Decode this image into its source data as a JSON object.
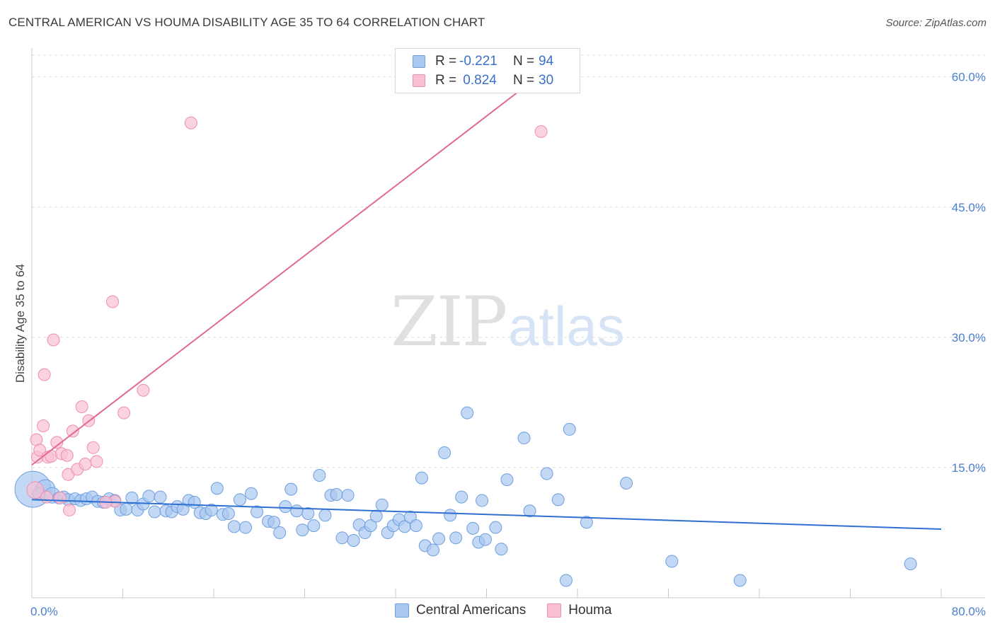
{
  "header": {
    "title": "CENTRAL AMERICAN VS HOUMA DISABILITY AGE 35 TO 64 CORRELATION CHART",
    "source": "Source: ZipAtlas.com"
  },
  "watermark": {
    "zip": "ZIP",
    "atlas": "atlas"
  },
  "legend": {
    "rows": [
      {
        "r_label": "R =",
        "r_value": "-0.221",
        "n_label": "N =",
        "n_value": "94",
        "color": "#a9c8f0",
        "border": "#6f9fe0"
      },
      {
        "r_label": "R =",
        "r_value": " 0.824",
        "n_label": "N =",
        "n_value": "30",
        "color": "#f9c0d3",
        "border": "#ee8fb0"
      }
    ]
  },
  "bottom_legend": [
    {
      "label": "Central Americans",
      "color": "#a9c8f0",
      "border": "#6f9fe0"
    },
    {
      "label": "Houma",
      "color": "#f9c0d3",
      "border": "#ee8fb0"
    }
  ],
  "chart_data": {
    "type": "scatter",
    "title": "CENTRAL AMERICAN VS HOUMA DISABILITY AGE 35 TO 64 CORRELATION CHART",
    "xlabel": "",
    "ylabel": "Disability Age 35 to 64",
    "xlim": [
      0,
      80
    ],
    "ylim": [
      0,
      62.5
    ],
    "x_tick_labels": [
      "0.0%",
      "80.0%"
    ],
    "y_ticks": [
      15,
      30,
      45,
      60
    ],
    "y_tick_labels": [
      "15.0%",
      "30.0%",
      "45.0%",
      "60.0%"
    ],
    "grid": true,
    "legend_position": "top-center",
    "series": [
      {
        "name": "Central Americans",
        "color": "#6f9fe0",
        "fill": "#a9c8f0",
        "trend": {
          "x": [
            0,
            80
          ],
          "y": [
            11.3,
            7.9
          ],
          "color": "#2f6fd0"
        },
        "points": [
          [
            0.1,
            12.5,
            3
          ],
          [
            1.2,
            12.5,
            1.6
          ],
          [
            0.6,
            12.0,
            1
          ],
          [
            1.8,
            11.8,
            1.3
          ],
          [
            2.4,
            11.5,
            1
          ],
          [
            2.8,
            11.6,
            1
          ],
          [
            3.2,
            11.3,
            1
          ],
          [
            3.8,
            11.4,
            1
          ],
          [
            4.3,
            11.2,
            1
          ],
          [
            4.8,
            11.4,
            1
          ],
          [
            5.3,
            11.6,
            1
          ],
          [
            5.8,
            11.1,
            1
          ],
          [
            6.3,
            11.0,
            1
          ],
          [
            6.8,
            11.4,
            1
          ],
          [
            7.3,
            11.2,
            1
          ],
          [
            7.8,
            10.1,
            1
          ],
          [
            8.3,
            10.2,
            1
          ],
          [
            8.8,
            11.5,
            1
          ],
          [
            9.3,
            10.1,
            1
          ],
          [
            9.8,
            10.8,
            1
          ],
          [
            10.3,
            11.7,
            1
          ],
          [
            10.8,
            9.9,
            1
          ],
          [
            11.3,
            11.6,
            1
          ],
          [
            11.8,
            10.0,
            1
          ],
          [
            12.3,
            9.9,
            1
          ],
          [
            12.8,
            10.5,
            1
          ],
          [
            13.3,
            10.2,
            1
          ],
          [
            13.8,
            11.2,
            1
          ],
          [
            14.3,
            11.0,
            1
          ],
          [
            14.8,
            9.8,
            1
          ],
          [
            15.3,
            9.7,
            1
          ],
          [
            15.8,
            10.1,
            1
          ],
          [
            16.3,
            12.6,
            1
          ],
          [
            16.8,
            9.6,
            1
          ],
          [
            17.3,
            9.7,
            1
          ],
          [
            17.8,
            8.2,
            1
          ],
          [
            18.3,
            11.3,
            1
          ],
          [
            18.8,
            8.1,
            1
          ],
          [
            19.3,
            12.0,
            1
          ],
          [
            19.8,
            9.9,
            1
          ],
          [
            20.8,
            8.8,
            1
          ],
          [
            21.3,
            8.7,
            1
          ],
          [
            21.8,
            7.5,
            1
          ],
          [
            22.3,
            10.5,
            1
          ],
          [
            22.8,
            12.5,
            1
          ],
          [
            23.3,
            10.0,
            1
          ],
          [
            23.8,
            7.8,
            1
          ],
          [
            24.3,
            9.7,
            1
          ],
          [
            24.8,
            8.3,
            1
          ],
          [
            25.3,
            14.1,
            1
          ],
          [
            25.8,
            9.5,
            1
          ],
          [
            26.3,
            11.8,
            1
          ],
          [
            26.8,
            11.9,
            1
          ],
          [
            27.3,
            6.9,
            1
          ],
          [
            27.8,
            11.8,
            1
          ],
          [
            28.3,
            6.6,
            1
          ],
          [
            28.8,
            8.4,
            1
          ],
          [
            29.3,
            7.5,
            1
          ],
          [
            29.8,
            8.3,
            1
          ],
          [
            30.3,
            9.4,
            1
          ],
          [
            30.8,
            10.7,
            1
          ],
          [
            31.3,
            7.5,
            1
          ],
          [
            31.8,
            8.3,
            1
          ],
          [
            32.3,
            9.0,
            1
          ],
          [
            32.8,
            8.2,
            1
          ],
          [
            33.3,
            9.3,
            1
          ],
          [
            33.8,
            8.3,
            1
          ],
          [
            34.3,
            13.8,
            1
          ],
          [
            34.6,
            6.0,
            1
          ],
          [
            35.3,
            5.5,
            1
          ],
          [
            35.8,
            6.8,
            1
          ],
          [
            36.3,
            16.7,
            1
          ],
          [
            36.8,
            9.5,
            1
          ],
          [
            37.3,
            6.9,
            1
          ],
          [
            37.8,
            11.6,
            1
          ],
          [
            38.3,
            21.3,
            1
          ],
          [
            38.8,
            8.0,
            1
          ],
          [
            39.3,
            6.4,
            1
          ],
          [
            39.6,
            11.2,
            1
          ],
          [
            39.9,
            6.7,
            1
          ],
          [
            40.8,
            8.1,
            1
          ],
          [
            41.3,
            5.6,
            1
          ],
          [
            41.8,
            13.6,
            1
          ],
          [
            43.3,
            18.4,
            1
          ],
          [
            43.8,
            10.0,
            1
          ],
          [
            45.3,
            14.3,
            1
          ],
          [
            46.3,
            11.3,
            1
          ],
          [
            47.3,
            19.4,
            1
          ],
          [
            48.8,
            8.7,
            1
          ],
          [
            52.3,
            13.2,
            1
          ],
          [
            56.3,
            4.2,
            1
          ],
          [
            62.3,
            2.0,
            1
          ],
          [
            77.3,
            3.9,
            1
          ],
          [
            47.0,
            2.0,
            1
          ]
        ]
      },
      {
        "name": "Houma",
        "color": "#ee8fb0",
        "fill": "#f9c0d3",
        "trend": {
          "x": [
            0,
            44.5
          ],
          "y": [
            15.3,
            60.0
          ],
          "color": "#e06a93"
        },
        "points": [
          [
            0.3,
            12.4,
            1.4
          ],
          [
            0.4,
            18.2,
            1
          ],
          [
            0.5,
            16.2,
            1
          ],
          [
            0.7,
            17.0,
            1
          ],
          [
            1.0,
            19.8,
            1
          ],
          [
            1.1,
            25.7,
            1
          ],
          [
            1.4,
            16.2,
            1
          ],
          [
            1.7,
            16.3,
            1
          ],
          [
            1.9,
            29.7,
            1
          ],
          [
            2.2,
            17.9,
            1
          ],
          [
            2.6,
            16.6,
            1
          ],
          [
            3.1,
            16.4,
            1
          ],
          [
            3.2,
            14.2,
            1
          ],
          [
            3.3,
            10.1,
            1
          ],
          [
            3.6,
            19.2,
            1
          ],
          [
            4.0,
            14.8,
            1
          ],
          [
            4.4,
            22.0,
            1
          ],
          [
            4.7,
            15.4,
            1
          ],
          [
            5.0,
            20.4,
            1
          ],
          [
            5.4,
            17.3,
            1
          ],
          [
            5.7,
            15.7,
            1
          ],
          [
            7.1,
            34.1,
            1
          ],
          [
            7.3,
            11.1,
            1
          ],
          [
            8.1,
            21.3,
            1
          ],
          [
            9.8,
            23.9,
            1
          ],
          [
            14.0,
            54.7,
            1
          ],
          [
            44.8,
            53.7,
            1
          ],
          [
            2.5,
            11.5,
            1
          ],
          [
            1.3,
            11.6,
            1
          ],
          [
            6.5,
            11.0,
            1
          ]
        ]
      }
    ]
  }
}
